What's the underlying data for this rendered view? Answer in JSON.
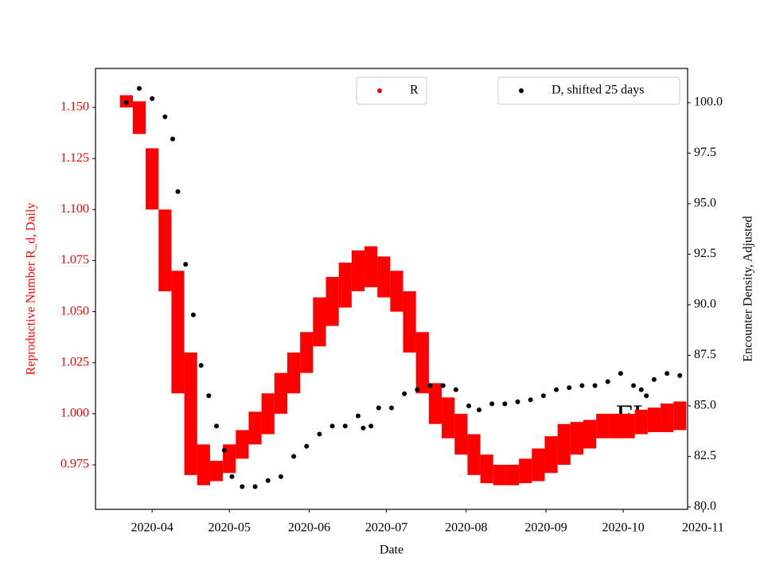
{
  "chart_data": {
    "type": "scatter",
    "xlabel": "Date",
    "ylabel": "Reproductive Number R_d, Daily",
    "y2label": "Encounter Density, Adjusted",
    "ylabel_color": "#ff0000",
    "annotation": "FL",
    "xlim": [
      "2020-03-10",
      "2020-10-26"
    ],
    "xticks": [
      {
        "value": "2020-04-01",
        "label": "2020-04"
      },
      {
        "value": "2020-05-01",
        "label": "2020-05"
      },
      {
        "value": "2020-06-01",
        "label": "2020-06"
      },
      {
        "value": "2020-07-01",
        "label": "2020-07"
      },
      {
        "value": "2020-08-01",
        "label": "2020-08"
      },
      {
        "value": "2020-09-01",
        "label": "2020-09"
      },
      {
        "value": "2020-10-01",
        "label": "2020-10"
      },
      {
        "value": "2020-11-01",
        "label": "2020-11"
      }
    ],
    "ylim": [
      0.9532,
      1.1691
    ],
    "yticks": [
      {
        "value": 0.975,
        "label": "0.975"
      },
      {
        "value": 1.0,
        "label": "1.000"
      },
      {
        "value": 1.025,
        "label": "1.025"
      },
      {
        "value": 1.05,
        "label": "1.050"
      },
      {
        "value": 1.075,
        "label": "1.075"
      },
      {
        "value": 1.1,
        "label": "1.100"
      },
      {
        "value": 1.125,
        "label": "1.125"
      },
      {
        "value": 1.15,
        "label": "1.150"
      }
    ],
    "y2lim": [
      79.88,
      101.69
    ],
    "y2ticks": [
      {
        "value": 80,
        "label": "80.0"
      },
      {
        "value": 82.5,
        "label": "82.5"
      },
      {
        "value": 85,
        "label": "85.0"
      },
      {
        "value": 87.5,
        "label": "87.5"
      },
      {
        "value": 90,
        "label": "90.0"
      },
      {
        "value": 92.5,
        "label": "92.5"
      },
      {
        "value": 95,
        "label": "95.0"
      },
      {
        "value": 97.5,
        "label": "97.5"
      },
      {
        "value": 100,
        "label": "100.0"
      }
    ],
    "series": [
      {
        "name": "R",
        "color": "#ff0000",
        "axis": "y",
        "legend": "upper center",
        "x": [
          "2020-03-22",
          "2020-03-27",
          "2020-04-01",
          "2020-04-06",
          "2020-04-11",
          "2020-04-16",
          "2020-04-21",
          "2020-04-26",
          "2020-05-01",
          "2020-05-06",
          "2020-05-11",
          "2020-05-16",
          "2020-05-21",
          "2020-05-26",
          "2020-05-31",
          "2020-06-05",
          "2020-06-10",
          "2020-06-15",
          "2020-06-20",
          "2020-06-25",
          "2020-06-30",
          "2020-07-05",
          "2020-07-10",
          "2020-07-15",
          "2020-07-20",
          "2020-07-25",
          "2020-07-30",
          "2020-08-04",
          "2020-08-09",
          "2020-08-14",
          "2020-08-19",
          "2020-08-24",
          "2020-08-29",
          "2020-09-03",
          "2020-09-08",
          "2020-09-13",
          "2020-09-18",
          "2020-09-23",
          "2020-09-28",
          "2020-10-03",
          "2020-10-08",
          "2020-10-13",
          "2020-10-18",
          "2020-10-23"
        ],
        "values": [
          1.153,
          1.145,
          1.115,
          1.08,
          1.04,
          1.0,
          0.975,
          0.972,
          0.978,
          0.985,
          0.993,
          1.0,
          1.01,
          1.02,
          1.03,
          1.045,
          1.055,
          1.063,
          1.07,
          1.072,
          1.067,
          1.06,
          1.045,
          1.025,
          1.005,
          0.998,
          0.99,
          0.98,
          0.973,
          0.97,
          0.97,
          0.972,
          0.975,
          0.98,
          0.985,
          0.988,
          0.99,
          0.994,
          0.994,
          0.994,
          0.996,
          0.997,
          0.998,
          0.999
        ],
        "errors": [
          0.003,
          0.008,
          0.015,
          0.02,
          0.03,
          0.03,
          0.01,
          0.005,
          0.007,
          0.007,
          0.008,
          0.01,
          0.01,
          0.01,
          0.01,
          0.012,
          0.012,
          0.011,
          0.01,
          0.01,
          0.01,
          0.01,
          0.015,
          0.015,
          0.01,
          0.01,
          0.01,
          0.01,
          0.007,
          0.005,
          0.005,
          0.006,
          0.008,
          0.009,
          0.01,
          0.008,
          0.007,
          0.006,
          0.006,
          0.006,
          0.006,
          0.006,
          0.007,
          0.007
        ]
      },
      {
        "name": "D, shifted 25 days",
        "color": "#000000",
        "axis": "y2",
        "legend": "upper right",
        "x": [
          "2020-03-22",
          "2020-03-27",
          "2020-04-01",
          "2020-04-06",
          "2020-04-09",
          "2020-04-11",
          "2020-04-14",
          "2020-04-17",
          "2020-04-20",
          "2020-04-23",
          "2020-04-26",
          "2020-04-29",
          "2020-05-02",
          "2020-05-06",
          "2020-05-11",
          "2020-05-16",
          "2020-05-21",
          "2020-05-26",
          "2020-05-31",
          "2020-06-05",
          "2020-06-10",
          "2020-06-15",
          "2020-06-20",
          "2020-06-22",
          "2020-06-25",
          "2020-06-28",
          "2020-07-03",
          "2020-07-08",
          "2020-07-13",
          "2020-07-18",
          "2020-07-23",
          "2020-07-28",
          "2020-08-02",
          "2020-08-06",
          "2020-08-11",
          "2020-08-16",
          "2020-08-21",
          "2020-08-26",
          "2020-08-31",
          "2020-09-05",
          "2020-09-10",
          "2020-09-15",
          "2020-09-20",
          "2020-09-25",
          "2020-09-30",
          "2020-10-05",
          "2020-10-08",
          "2020-10-10",
          "2020-10-13",
          "2020-10-18",
          "2020-10-23"
        ],
        "values": [
          100.0,
          100.7,
          100.2,
          99.3,
          98.2,
          95.6,
          92.0,
          89.5,
          87.0,
          85.5,
          84.0,
          82.8,
          81.5,
          81.0,
          81.0,
          81.3,
          81.5,
          82.5,
          83.0,
          83.6,
          84.0,
          84.0,
          84.5,
          83.9,
          84.0,
          84.9,
          84.9,
          85.6,
          85.8,
          86.0,
          86.0,
          85.8,
          85.0,
          84.8,
          85.1,
          85.1,
          85.2,
          85.3,
          85.5,
          85.8,
          85.9,
          86.0,
          86.0,
          86.2,
          86.6,
          86.0,
          85.8,
          85.5,
          86.3,
          86.6,
          86.5
        ]
      }
    ]
  }
}
